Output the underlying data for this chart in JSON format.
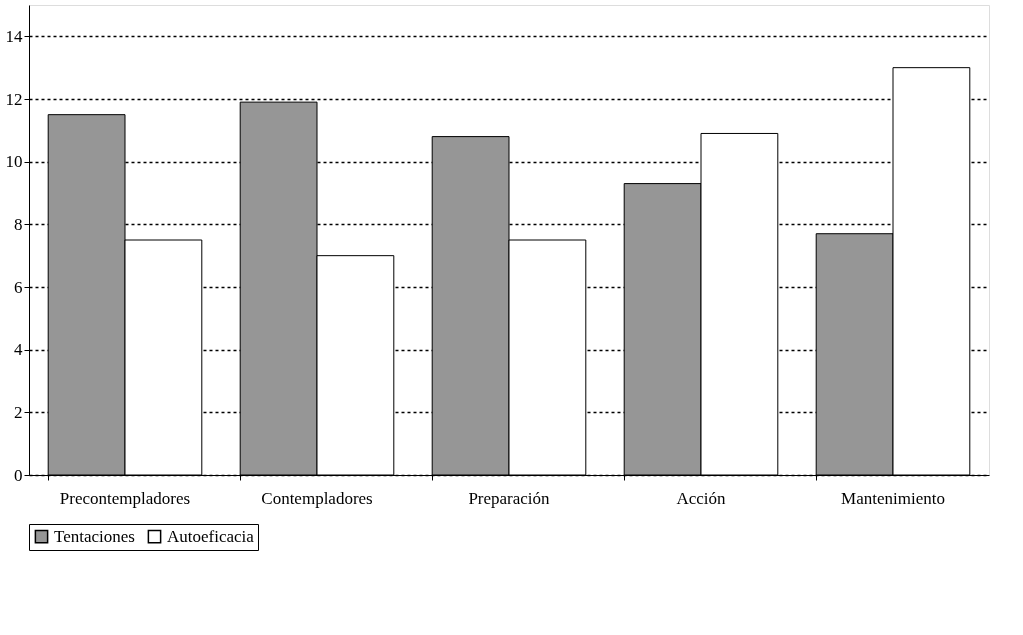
{
  "chart_data": {
    "type": "bar",
    "categories": [
      "Precontempladores",
      "Contempladores",
      "Preparación",
      "Acción",
      "Mantenimiento"
    ],
    "series": [
      {
        "name": "Tentaciones",
        "color": "#969696",
        "values": [
          11.5,
          11.9,
          10.8,
          9.3,
          7.7
        ]
      },
      {
        "name": "Autoeficacia",
        "color": "#ffffff",
        "values": [
          7.5,
          7.0,
          7.5,
          10.9,
          13.0
        ]
      }
    ],
    "ylim": [
      0,
      15
    ],
    "yticks": [
      0,
      2,
      4,
      6,
      8,
      10,
      12,
      14
    ],
    "grid": "y",
    "legend": "bottom"
  }
}
